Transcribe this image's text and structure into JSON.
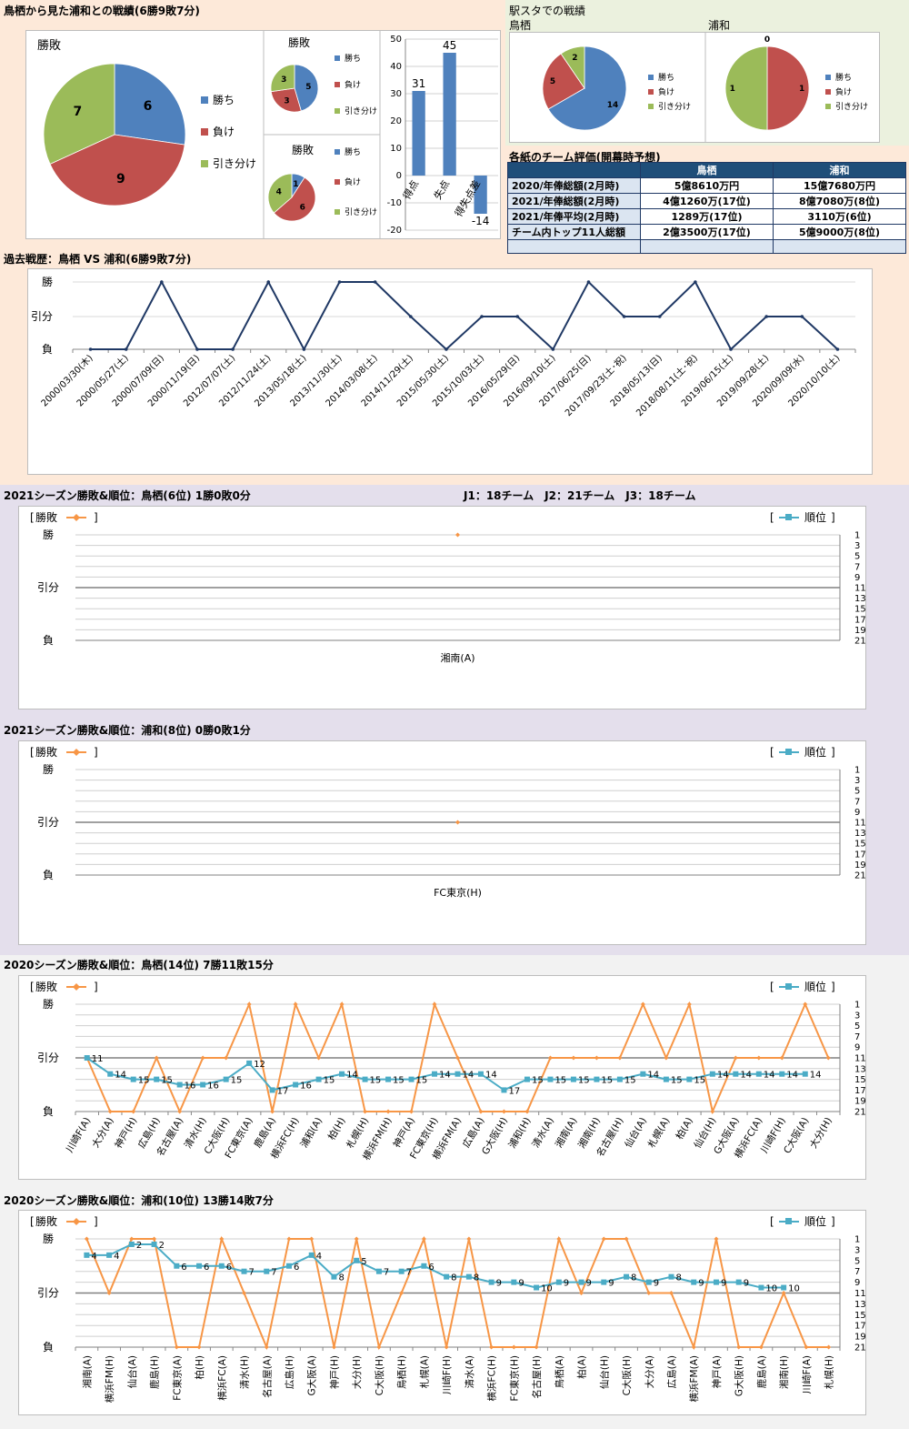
{
  "headings": {
    "top_left": "鳥栖から見た浦和との戦績(6勝9敗7分)",
    "stadium": "駅スタでの戦績",
    "stadium_left": "鳥栖",
    "stadium_right": "浦和",
    "eval_title": "各紙のチーム評価(開幕時予想)",
    "history": "過去戦歴：鳥栖 VS 浦和(6勝9敗7分)",
    "season2021_tosu": "2021シーズン勝敗&順位：鳥栖(6位) 1勝0敗0分",
    "league_info": "J1：18チーム　J2：21チーム　J3：18チーム",
    "season2021_urawa": "2021シーズン勝敗&順位：浦和(8位) 0勝0敗1分",
    "season2020_tosu": "2020シーズン勝敗&順位：鳥栖(14位) 7勝11敗15分",
    "season2020_urawa": "2020シーズン勝敗&順位：浦和(10位) 13勝14敗7分"
  },
  "colors": {
    "win": "#4f81bd",
    "loss": "#c0504d",
    "draw": "#9bbb59",
    "result_line": "#f79646",
    "rank_line": "#4bacc6",
    "history_line": "#1f3864",
    "table_head": "#1f4e79"
  },
  "legend": {
    "win": "勝ち",
    "loss": "負け",
    "draw": "引き分け",
    "result": "勝敗",
    "rank": "順位"
  },
  "y_labels": {
    "win": "勝",
    "draw": "引分",
    "loss": "負"
  },
  "rank_ticks": [
    "1",
    "3",
    "5",
    "7",
    "9",
    "11",
    "13",
    "15",
    "17",
    "19",
    "21"
  ],
  "team_eval": {
    "columns": [
      "",
      "鳥栖",
      "浦和"
    ],
    "rows": [
      [
        "2020/年俸総額(2月時)",
        "5億8610万円",
        "15億7680万円"
      ],
      [
        "2021/年俸総額(2月時)",
        "4億1260万(17位)",
        "8億7080万(8位)"
      ],
      [
        "2021/年俸平均(2月時)",
        "1289万(17位)",
        "3110万(6位)"
      ],
      [
        "チーム内トップ11人総額",
        "2億3500万(17位)",
        "5億9000万(8位)"
      ],
      [
        "",
        "",
        ""
      ]
    ]
  },
  "chart_data": [
    {
      "id": "overall_pie",
      "type": "pie",
      "title": "勝敗",
      "labels": [
        "勝ち",
        "負け",
        "引き分け"
      ],
      "values": [
        6,
        9,
        7
      ]
    },
    {
      "id": "home_pie",
      "type": "pie",
      "title": "勝敗",
      "labels": [
        "勝ち",
        "負け",
        "引き分け"
      ],
      "values": [
        5,
        3,
        3
      ]
    },
    {
      "id": "away_pie",
      "type": "pie",
      "title": "勝敗",
      "labels": [
        "勝ち",
        "負け",
        "引き分け"
      ],
      "values": [
        1,
        6,
        4
      ]
    },
    {
      "id": "goals_bar",
      "type": "bar",
      "categories": [
        "得点",
        "失点",
        "得失点差"
      ],
      "values": [
        31,
        45,
        -14
      ],
      "ylim": [
        -20,
        50
      ],
      "yticks": [
        -20,
        -10,
        0,
        10,
        20,
        30,
        40,
        50
      ]
    },
    {
      "id": "stadium_tosu_pie",
      "type": "pie",
      "labels": [
        "勝ち",
        "負け",
        "引き分け"
      ],
      "values": [
        14,
        5,
        2
      ]
    },
    {
      "id": "stadium_urawa_pie",
      "type": "pie",
      "labels": [
        "勝ち",
        "負け",
        "引き分け"
      ],
      "values": [
        0,
        1,
        1
      ]
    },
    {
      "id": "history",
      "type": "line",
      "dates": [
        "2000/03/30(木)",
        "2000/05/27(土)",
        "2000/07/09(日)",
        "2000/11/19(日)",
        "2012/07/07(土)",
        "2012/11/24(土)",
        "2013/05/18(土)",
        "2013/11/30(土)",
        "2014/03/08(土)",
        "2014/11/29(土)",
        "2015/05/30(土)",
        "2015/10/03(土)",
        "2016/05/29(日)",
        "2016/09/10(土)",
        "2017/06/25(日)",
        "2017/09/23(土･祝)",
        "2018/05/13(日)",
        "2018/08/11(土･祝)",
        "2019/06/15(土)",
        "2019/09/28(土)",
        "2020/09/09(水)",
        "2020/10/10(土)"
      ],
      "results": [
        "L",
        "L",
        "W",
        "L",
        "L",
        "W",
        "L",
        "W",
        "W",
        "D",
        "L",
        "D",
        "D",
        "L",
        "W",
        "D",
        "D",
        "W",
        "L",
        "D",
        "D",
        "L"
      ],
      "categories": [
        "2000/03/30(木)",
        "2000/05/27(土)",
        "2000/07/09(日)",
        "2000/11/19(日)",
        "2012/07/07(土)",
        "2012/11/24(土)",
        "2013/05/18(土)",
        "2013/11/30(土)",
        "2014/03/08(土)",
        "2014/11/29(土)",
        "2015/05/30(土)",
        "2015/10/03(土)",
        "2016/05/29(日)",
        "2016/09/10(土)",
        "2017/06/25(日)",
        "2017/09/23(土･祝)",
        "2018/05/13(日)",
        "2018/08/11(土･祝)",
        "2019/06/15(土)",
        "2019/09/28(土)",
        "2020/09/09(水)",
        "2020/10/10(土)"
      ]
    },
    {
      "id": "s2021_tosu",
      "type": "line",
      "opponents": [
        "湘南(A)"
      ],
      "results": [
        "W"
      ],
      "ranks": [
        null
      ]
    },
    {
      "id": "s2021_urawa",
      "type": "line",
      "opponents": [
        "FC東京(H)"
      ],
      "results": [
        "D"
      ],
      "ranks": [
        null
      ]
    },
    {
      "id": "s2020_tosu",
      "type": "line",
      "opponents": [
        "川崎F(A)",
        "大分(A)",
        "神戸(H)",
        "広島(H)",
        "名古屋(A)",
        "清水(H)",
        "C大阪(H)",
        "FC東京(A)",
        "鹿島(A)",
        "横浜FC(H)",
        "浦和(A)",
        "柏(H)",
        "札幌(H)",
        "横浜FM(H)",
        "神戸(A)",
        "FC東京(H)",
        "横浜FM(A)",
        "広島(A)",
        "G大阪(H)",
        "浦和(H)",
        "清水(A)",
        "湘南(A)",
        "湘南(H)",
        "名古屋(H)",
        "仙台(A)",
        "札幌(A)",
        "柏(A)",
        "仙台(H)",
        "G大阪(A)",
        "横浜FC(A)",
        "川崎F(H)",
        "C大阪(A)",
        "大分(H)"
      ],
      "results": [
        "D",
        "L",
        "L",
        "D",
        "L",
        "D",
        "D",
        "W",
        "L",
        "W",
        "D",
        "W",
        "L",
        "L",
        "L",
        "W",
        "D",
        "L",
        "L",
        "L",
        "D",
        "D",
        "D",
        "D",
        "W",
        "D",
        "W",
        "L",
        "D",
        "D",
        "D",
        "W",
        "D"
      ],
      "ranks": [
        11,
        14,
        15,
        15,
        16,
        16,
        15,
        12,
        17,
        16,
        15,
        14,
        15,
        15,
        15,
        14,
        14,
        14,
        17,
        15,
        15,
        15,
        15,
        15,
        14,
        15,
        15,
        14,
        14,
        14,
        14,
        14,
        null
      ],
      "rank_labels": [
        "11",
        "14",
        "15",
        "15",
        "16",
        "16",
        "15",
        "12",
        "17",
        "16",
        "15",
        "14",
        "15",
        "15",
        "15",
        "14",
        "14",
        "14",
        "17",
        "15",
        "15",
        "15",
        "15",
        "15",
        "14",
        "15",
        "15",
        "14",
        "14",
        "14",
        "14",
        "14",
        ""
      ]
    },
    {
      "id": "s2020_urawa",
      "type": "line",
      "opponents": [
        "湘南(A)",
        "横浜FM(H)",
        "仙台(A)",
        "鹿島(H)",
        "FC東京(A)",
        "柏(H)",
        "横浜FC(A)",
        "清水(H)",
        "名古屋(A)",
        "広島(H)",
        "G大阪(A)",
        "神戸(H)",
        "大分(H)",
        "C大阪(H)",
        "鳥栖(H)",
        "札幌(A)",
        "川崎F(H)",
        "清水(A)",
        "横浜FC(H)",
        "FC東京(H)",
        "名古屋(H)",
        "鳥栖(A)",
        "柏(A)",
        "仙台(H)",
        "C大阪(H)",
        "大分(A)",
        "広島(A)",
        "横浜FM(A)",
        "神戸(A)",
        "G大阪(H)",
        "鹿島(A)",
        "湘南(H)",
        "川崎F(A)",
        "札幌(H)"
      ],
      "results": [
        "W",
        "D",
        "W",
        "W",
        "L",
        "L",
        "W",
        "D",
        "L",
        "W",
        "W",
        "L",
        "W",
        "L",
        "D",
        "W",
        "L",
        "W",
        "L",
        "L",
        "L",
        "W",
        "D",
        "W",
        "W",
        "D",
        "D",
        "L",
        "W",
        "L",
        "L",
        "D",
        "L",
        "L"
      ],
      "ranks": [
        4,
        4,
        2,
        2,
        6,
        6,
        6,
        7,
        7,
        6,
        4,
        8,
        5,
        7,
        7,
        6,
        8,
        8,
        9,
        9,
        10,
        9,
        9,
        9,
        8,
        9,
        8,
        9,
        9,
        9,
        10,
        10,
        null,
        null
      ],
      "rank_labels": [
        "4",
        "4",
        "2",
        "2",
        "6",
        "6",
        "6",
        "7",
        "7",
        "6",
        "4",
        "8",
        "5",
        "7",
        "7",
        "6",
        "8",
        "8",
        "9",
        "9",
        "10",
        "9",
        "9",
        "9",
        "8",
        "9",
        "8",
        "9",
        "9",
        "9",
        "10",
        "10",
        "",
        ""
      ]
    }
  ]
}
